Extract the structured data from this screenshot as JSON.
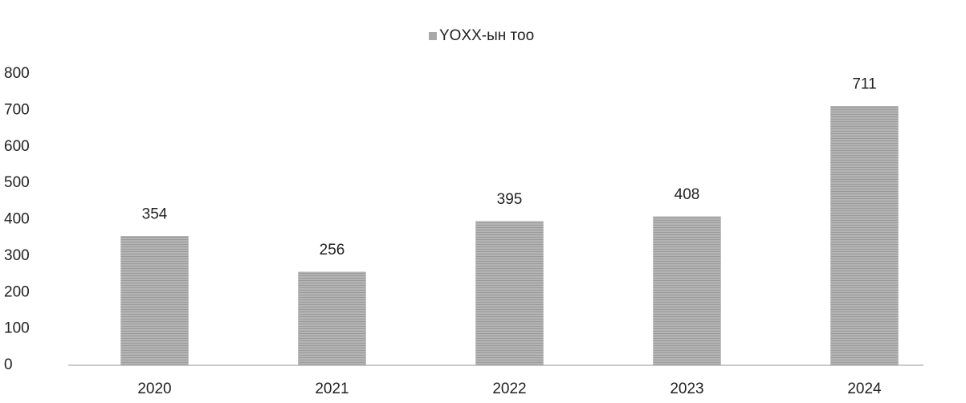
{
  "chart_data": {
    "type": "bar",
    "categories": [
      "2020",
      "2021",
      "2022",
      "2023",
      "2024"
    ],
    "series": [
      {
        "name": "YOXX-ын тоо",
        "color": "#a9a9a9",
        "values": [
          354,
          256,
          395,
          408,
          711
        ]
      }
    ],
    "ylim": [
      0,
      800
    ],
    "yticks": [
      0,
      100,
      200,
      300,
      400,
      500,
      600,
      700,
      800
    ],
    "grid": false,
    "legend": "top"
  }
}
